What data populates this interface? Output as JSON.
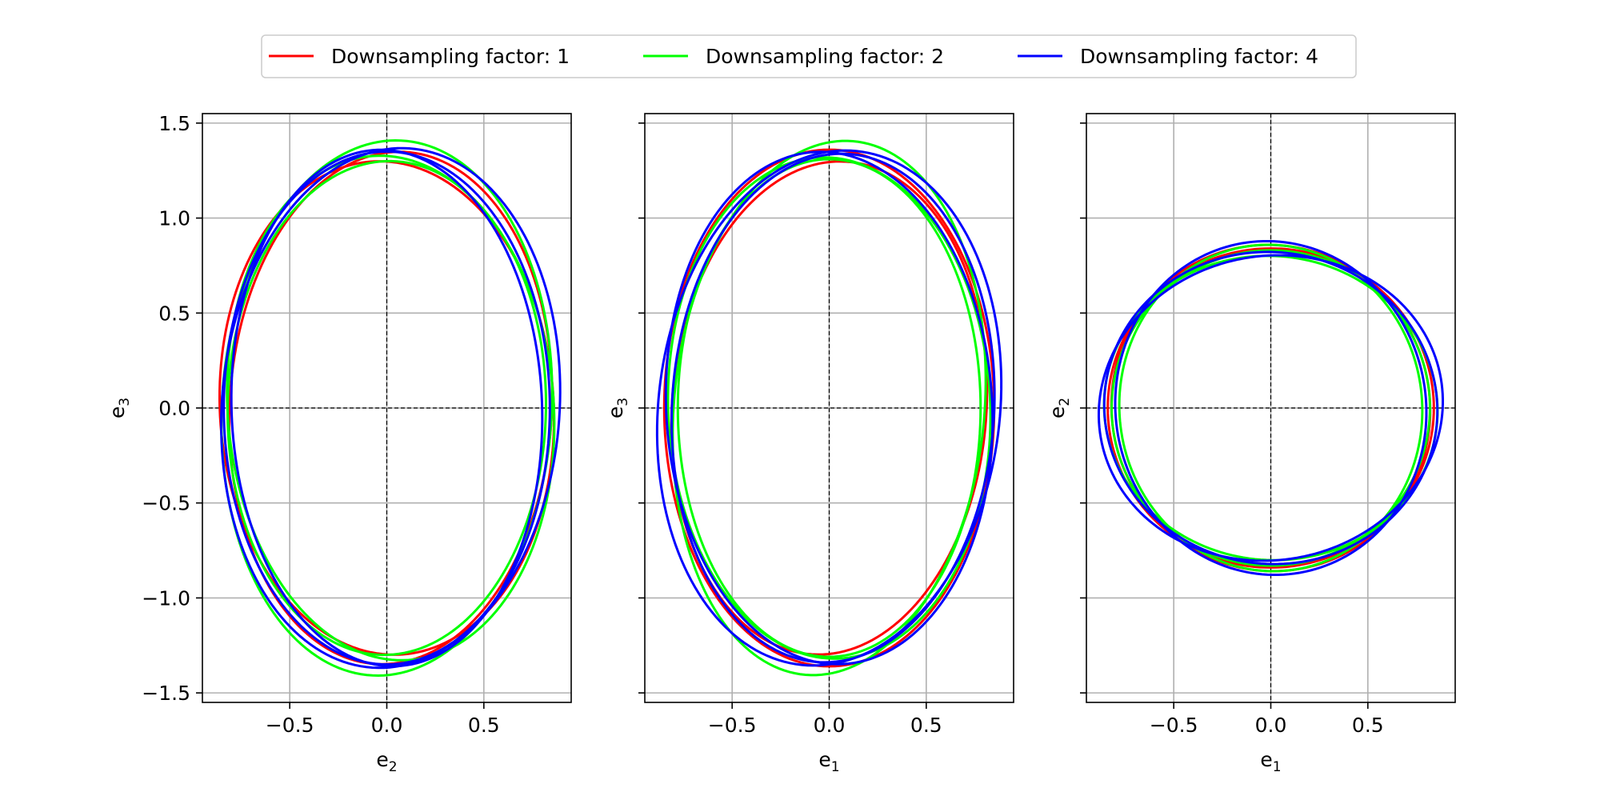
{
  "legend": {
    "placement": "top-center",
    "entries": [
      {
        "label": "Downsampling factor: 1",
        "color": "#ff0000"
      },
      {
        "label": "Downsampling factor: 2",
        "color": "#00ff00"
      },
      {
        "label": "Downsampling factor: 4",
        "color": "#0000ff"
      }
    ]
  },
  "chart_data": [
    {
      "type": "line",
      "panel": "e2-e3",
      "xlabel": {
        "base": "e",
        "sub": "2"
      },
      "ylabel": {
        "base": "e",
        "sub": "3"
      },
      "xlim": [
        -0.95,
        0.95
      ],
      "ylim": [
        -1.55,
        1.55
      ],
      "xticks": [
        -0.5,
        0.0,
        0.5
      ],
      "xtick_labels": [
        "−0.5",
        "0.0",
        "0.5"
      ],
      "yticks": [
        -1.5,
        -1.0,
        -0.5,
        0.0,
        0.5,
        1.0,
        1.5
      ],
      "ytick_labels": [
        "−1.5",
        "−1.0",
        "−0.5",
        "0.0",
        "0.5",
        "1.0",
        "1.5"
      ],
      "show_yticklabels": true,
      "grid": true,
      "zero_lines": true,
      "series": [
        {
          "name": "Downsampling factor: 1",
          "color": "#ff0000",
          "curves": [
            {
              "cx": 0.0,
              "cy": 0.0,
              "a": 0.86,
              "b": 1.3,
              "rot": 3
            },
            {
              "cx": 0.02,
              "cy": 0.0,
              "a": 0.83,
              "b": 1.35,
              "rot": -3
            }
          ]
        },
        {
          "name": "Downsampling factor: 2",
          "color": "#00ff00",
          "curves": [
            {
              "cx": 0.0,
              "cy": 0.0,
              "a": 0.85,
              "b": 1.41,
              "rot": -3
            },
            {
              "cx": 0.02,
              "cy": 0.0,
              "a": 0.84,
              "b": 1.33,
              "rot": 4
            },
            {
              "cx": 0.0,
              "cy": 0.0,
              "a": 0.82,
              "b": 1.3,
              "rot": -1
            }
          ]
        },
        {
          "name": "Downsampling factor: 4",
          "color": "#0000ff",
          "curves": [
            {
              "cx": 0.02,
              "cy": 0.0,
              "a": 0.87,
              "b": 1.37,
              "rot": -4
            },
            {
              "cx": 0.0,
              "cy": 0.0,
              "a": 0.8,
              "b": 1.36,
              "rot": 2
            },
            {
              "cx": 0.0,
              "cy": 0.0,
              "a": 0.84,
              "b": 1.35,
              "rot": 0
            }
          ]
        }
      ]
    },
    {
      "type": "line",
      "panel": "e1-e3",
      "xlabel": {
        "base": "e",
        "sub": "1"
      },
      "ylabel": {
        "base": "e",
        "sub": "3"
      },
      "xlim": [
        -0.95,
        0.95
      ],
      "ylim": [
        -1.55,
        1.55
      ],
      "xticks": [
        -0.5,
        0.0,
        0.5
      ],
      "xtick_labels": [
        "−0.5",
        "0.0",
        "0.5"
      ],
      "yticks": [
        -1.5,
        -1.0,
        -0.5,
        0.0,
        0.5,
        1.0,
        1.5
      ],
      "ytick_labels": [
        "−1.5",
        "−1.0",
        "−0.5",
        "0.0",
        "0.5",
        "1.0",
        "1.5"
      ],
      "show_yticklabels": false,
      "grid": true,
      "zero_lines": true,
      "series": [
        {
          "name": "Downsampling factor: 1",
          "color": "#ff0000",
          "curves": [
            {
              "cx": 0.0,
              "cy": 0.0,
              "a": 0.81,
              "b": 1.3,
              "rot": -4
            },
            {
              "cx": 0.0,
              "cy": 0.0,
              "a": 0.85,
              "b": 1.36,
              "rot": 0
            }
          ]
        },
        {
          "name": "Downsampling factor: 2",
          "color": "#00ff00",
          "curves": [
            {
              "cx": 0.0,
              "cy": 0.0,
              "a": 0.8,
              "b": 1.41,
              "rot": -5
            },
            {
              "cx": 0.0,
              "cy": 0.0,
              "a": 0.83,
              "b": 1.32,
              "rot": 2
            },
            {
              "cx": 0.0,
              "cy": 0.0,
              "a": 0.78,
              "b": 1.31,
              "rot": 0
            }
          ]
        },
        {
          "name": "Downsampling factor: 4",
          "color": "#0000ff",
          "curves": [
            {
              "cx": 0.0,
              "cy": 0.0,
              "a": 0.88,
              "b": 1.36,
              "rot": -6
            },
            {
              "cx": 0.02,
              "cy": 0.0,
              "a": 0.83,
              "b": 1.34,
              "rot": -3
            },
            {
              "cx": 0.0,
              "cy": 0.0,
              "a": 0.84,
              "b": 1.35,
              "rot": 3
            }
          ]
        }
      ]
    },
    {
      "type": "line",
      "panel": "e1-e2",
      "xlabel": {
        "base": "e",
        "sub": "1"
      },
      "ylabel": {
        "base": "e",
        "sub": "2"
      },
      "xlim": [
        -0.95,
        0.95
      ],
      "ylim": [
        -1.55,
        1.55
      ],
      "xticks": [
        -0.5,
        0.0,
        0.5
      ],
      "xtick_labels": [
        "−0.5",
        "0.0",
        "0.5"
      ],
      "yticks": [
        -1.5,
        -1.0,
        -0.5,
        0.0,
        0.5,
        1.0,
        1.5
      ],
      "ytick_labels": [
        "−1.5",
        "−1.0",
        "−0.5",
        "0.0",
        "0.5",
        "1.0",
        "1.5"
      ],
      "show_yticklabels": false,
      "grid": true,
      "zero_lines": true,
      "series": [
        {
          "name": "Downsampling factor: 1",
          "color": "#ff0000",
          "curves": [
            {
              "cx": 0.0,
              "cy": 0.0,
              "a": 0.84,
              "b": 0.84,
              "rot": 0
            },
            {
              "cx": 0.0,
              "cy": 0.0,
              "a": 0.82,
              "b": 0.86,
              "rot": 10
            }
          ]
        },
        {
          "name": "Downsampling factor: 2",
          "color": "#00ff00",
          "curves": [
            {
              "cx": 0.0,
              "cy": 0.0,
              "a": 0.78,
              "b": 0.86,
              "rot": 5
            },
            {
              "cx": 0.0,
              "cy": 0.0,
              "a": 0.86,
              "b": 0.8,
              "rot": -8
            },
            {
              "cx": 0.0,
              "cy": 0.0,
              "a": 0.82,
              "b": 0.83,
              "rot": 0
            }
          ]
        },
        {
          "name": "Downsampling factor: 4",
          "color": "#0000ff",
          "curves": [
            {
              "cx": 0.0,
              "cy": 0.0,
              "a": 0.89,
              "b": 0.8,
              "rot": 12
            },
            {
              "cx": 0.0,
              "cy": 0.0,
              "a": 0.8,
              "b": 0.88,
              "rot": 8
            },
            {
              "cx": 0.0,
              "cy": 0.0,
              "a": 0.86,
              "b": 0.82,
              "rot": -12
            }
          ]
        }
      ]
    }
  ]
}
